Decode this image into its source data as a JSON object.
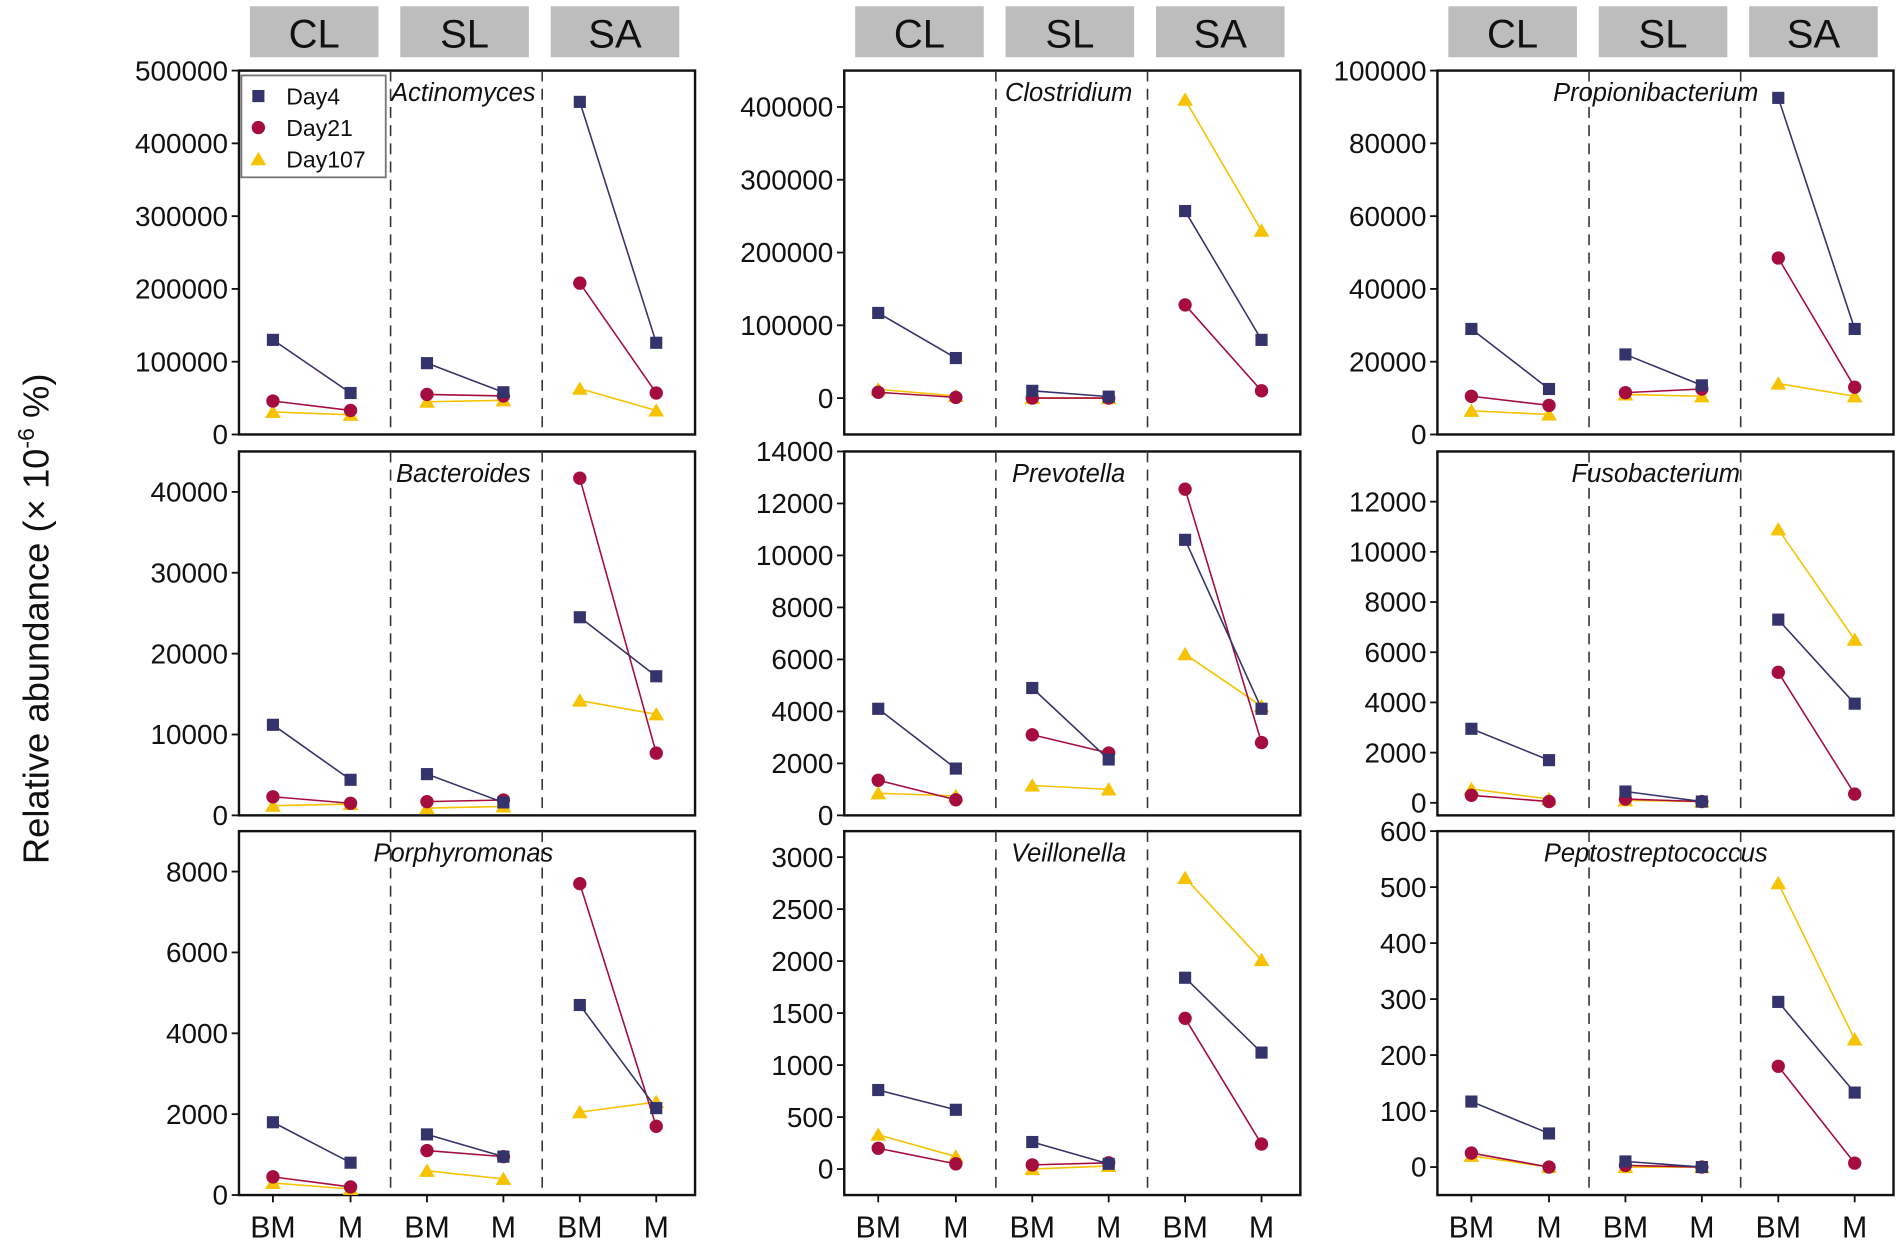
{
  "chart_data": {
    "type": "line",
    "ylabel": "Relative abundance (× 10",
    "ylabel_sup": "-6",
    "ylabel_end": " %)",
    "groups": [
      "CL",
      "SL",
      "SA"
    ],
    "x_categories": [
      "BM",
      "M"
    ],
    "legend": {
      "placement": "top-left (first panel)",
      "entries": [
        {
          "name": "Day4",
          "marker": "square",
          "color": "#35336b"
        },
        {
          "name": "Day21",
          "marker": "circle",
          "color": "#a50d3e"
        },
        {
          "name": "Day107",
          "marker": "triangle",
          "color": "#f7c200"
        }
      ]
    },
    "panels": [
      {
        "title": "Actinomyces",
        "ylim": [
          0,
          500000
        ],
        "ticks": [
          0,
          100000,
          200000,
          300000,
          400000,
          500000
        ],
        "series": {
          "Day4": [
            130000,
            57000,
            98000,
            58000,
            457000,
            126000
          ],
          "Day21": [
            46000,
            33000,
            55000,
            53000,
            208000,
            57000
          ],
          "Day107": [
            31000,
            27000,
            45000,
            47000,
            63000,
            33000
          ]
        }
      },
      {
        "title": "Clostridium",
        "ylim": [
          -50000,
          450000
        ],
        "ticks": [
          0,
          100000,
          200000,
          300000,
          400000
        ],
        "series": {
          "Day4": [
            117000,
            55000,
            10000,
            2000,
            257000,
            80000
          ],
          "Day21": [
            8000,
            1000,
            0,
            0,
            128000,
            10000
          ],
          "Day107": [
            12000,
            3000,
            0,
            0,
            410000,
            230000
          ]
        }
      },
      {
        "title": "Propionibacterium",
        "ylim": [
          0,
          100000
        ],
        "ticks": [
          0,
          20000,
          40000,
          60000,
          80000,
          100000
        ],
        "series": {
          "Day4": [
            29000,
            12500,
            22000,
            13500,
            92500,
            29000
          ],
          "Day21": [
            10500,
            8000,
            11500,
            12500,
            48500,
            13000
          ],
          "Day107": [
            6500,
            5500,
            11000,
            10500,
            14000,
            10500
          ]
        }
      },
      {
        "title": "Bacteroides",
        "ylim": [
          0,
          45000
        ],
        "ticks": [
          0,
          10000,
          20000,
          30000,
          40000
        ],
        "series": {
          "Day4": [
            11200,
            4400,
            5100,
            1600,
            24500,
            17200
          ],
          "Day21": [
            2300,
            1500,
            1700,
            1900,
            41700,
            7700
          ],
          "Day107": [
            1200,
            1400,
            900,
            1100,
            14200,
            12500
          ]
        }
      },
      {
        "title": "Prevotella",
        "ylim": [
          0,
          14000
        ],
        "ticks": [
          0,
          2000,
          4000,
          6000,
          8000,
          10000,
          12000,
          14000
        ],
        "series": {
          "Day4": [
            4100,
            1800,
            4900,
            2150,
            10600,
            4100
          ],
          "Day21": [
            1350,
            600,
            3100,
            2400,
            12550,
            2800
          ],
          "Day107": [
            850,
            750,
            1150,
            1000,
            6200,
            4200
          ]
        }
      },
      {
        "title": "Fusobacterium",
        "ylim": [
          -500,
          14000
        ],
        "ticks": [
          0,
          2000,
          4000,
          6000,
          8000,
          10000,
          12000
        ],
        "series": {
          "Day4": [
            2950,
            1700,
            450,
            50,
            7300,
            3950
          ],
          "Day21": [
            300,
            50,
            150,
            50,
            5200,
            350
          ],
          "Day107": [
            550,
            150,
            100,
            50,
            10900,
            6500
          ]
        }
      },
      {
        "title": "Porphyromonas",
        "ylim": [
          0,
          9000
        ],
        "ticks": [
          0,
          2000,
          4000,
          6000,
          8000
        ],
        "series": {
          "Day4": [
            1800,
            800,
            1500,
            950,
            4700,
            2150
          ],
          "Day21": [
            450,
            200,
            1100,
            950,
            7700,
            1700
          ],
          "Day107": [
            300,
            150,
            600,
            400,
            2050,
            2300
          ]
        }
      },
      {
        "title": "Veillonella",
        "ylim": [
          -250,
          3250
        ],
        "ticks": [
          0,
          500,
          1000,
          1500,
          2000,
          2500,
          3000
        ],
        "series": {
          "Day4": [
            760,
            570,
            260,
            50,
            1840,
            1120
          ],
          "Day21": [
            200,
            50,
            40,
            60,
            1450,
            240
          ],
          "Day107": [
            330,
            120,
            0,
            30,
            2800,
            2010
          ]
        }
      },
      {
        "title": "Peptostreptococcus",
        "ylim": [
          -50,
          600
        ],
        "ticks": [
          0,
          100,
          200,
          300,
          400,
          500,
          600
        ],
        "series": {
          "Day4": [
            117,
            60,
            10,
            0,
            295,
            133
          ],
          "Day21": [
            25,
            0,
            3,
            0,
            180,
            7
          ],
          "Day107": [
            20,
            0,
            0,
            0,
            507,
            228
          ]
        }
      }
    ]
  }
}
